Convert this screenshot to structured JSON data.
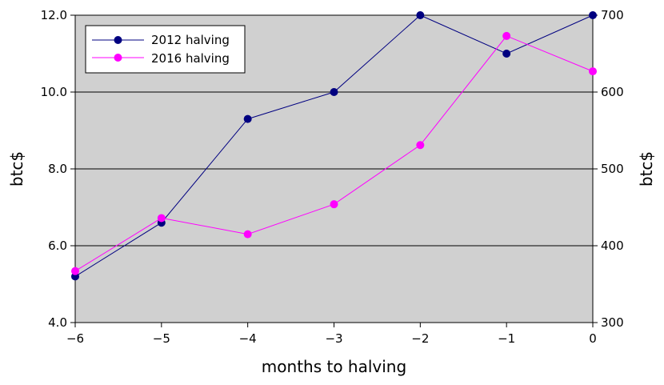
{
  "chart_data": {
    "type": "line",
    "x": [
      -6,
      -5,
      -4,
      -3,
      -2,
      -1,
      0
    ],
    "x_tick_labels": [
      "−6",
      "−5",
      "−4",
      "−3",
      "−2",
      "−1",
      "0"
    ],
    "xlabel": "months to halving",
    "xlim": [
      -6,
      0
    ],
    "ylabel_left": "btc$",
    "ylabel_right": "btc$",
    "ylim_left": [
      4.0,
      12.0
    ],
    "ylim_right": [
      300,
      700
    ],
    "y_left_ticks": [
      4.0,
      6.0,
      8.0,
      10.0,
      12.0
    ],
    "y_left_tick_labels": [
      "4.0",
      "6.0",
      "8.0",
      "10.0",
      "12.0"
    ],
    "y_right_ticks": [
      300,
      400,
      500,
      600,
      700
    ],
    "y_right_tick_labels": [
      "300",
      "400",
      "500",
      "600",
      "700"
    ],
    "grid": "horizontal",
    "background_color": "#d0d0d0",
    "legend_position": "top-left",
    "series": [
      {
        "name": "2012 halving",
        "axis": "left",
        "color": "#000080",
        "values": [
          5.2,
          6.6,
          9.3,
          10.0,
          12.0,
          11.0,
          12.0
        ]
      },
      {
        "name": "2016 halving",
        "axis": "right",
        "color": "#ff00ff",
        "values": [
          367,
          436,
          415,
          454,
          531,
          673,
          627
        ]
      }
    ]
  }
}
